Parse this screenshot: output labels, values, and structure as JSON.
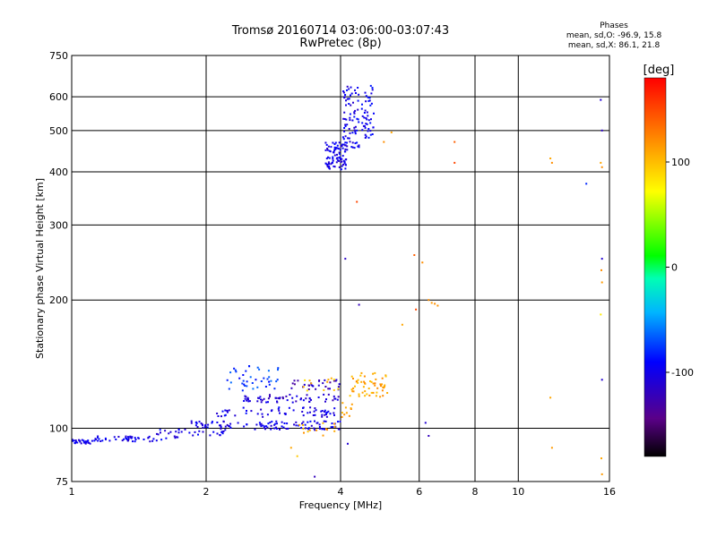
{
  "chart_data": {
    "type": "scatter",
    "title": "Tromsø 20160714 03:06:00-03:07:43",
    "subtitle": "RwPretec (8p)",
    "xlabel": "Frequency [MHz]",
    "ylabel": "Stationary phase Virtual Height [km]",
    "x_scale": "log",
    "y_scale": "log",
    "xlim": [
      1,
      16
    ],
    "ylim": [
      75,
      750
    ],
    "x_ticks": [
      1,
      2,
      4,
      6,
      8,
      10,
      16
    ],
    "y_ticks": [
      75,
      100,
      200,
      300,
      400,
      500,
      600,
      750
    ],
    "grid": true,
    "colorbar": {
      "label": "[deg]",
      "ticks": [
        100,
        0,
        -100
      ],
      "range": [
        -180,
        180
      ],
      "colormap": "rainbow"
    },
    "phase_stats": {
      "heading": "Phases",
      "line_o": "mean, sd,O: -96.9, 15.8",
      "line_x": "mean, sd,X:  86.1, 21.8"
    },
    "clusters": [
      {
        "f": [
          1.0,
          1.1
        ],
        "h": [
          92,
          94
        ],
        "phase": -100,
        "n": 28
      },
      {
        "f": [
          1.1,
          1.55
        ],
        "h": [
          93,
          96
        ],
        "phase": -100,
        "n": 45
      },
      {
        "f": [
          1.55,
          1.85
        ],
        "h": [
          94,
          100
        ],
        "phase": -100,
        "n": 20
      },
      {
        "f": [
          1.85,
          2.2
        ],
        "h": [
          96,
          104
        ],
        "phase": -100,
        "n": 40
      },
      {
        "f": [
          2.2,
          4.0
        ],
        "h": [
          99,
          104
        ],
        "phase": -100,
        "n": 80
      },
      {
        "f": [
          2.1,
          3.9
        ],
        "h": [
          106,
          112
        ],
        "phase": -100,
        "n": 60
      },
      {
        "f": [
          2.4,
          4.0
        ],
        "h": [
          115,
          120
        ],
        "phase": -110,
        "n": 60
      },
      {
        "f": [
          2.2,
          2.9
        ],
        "h": [
          122,
          140
        ],
        "phase": -75,
        "n": 40
      },
      {
        "f": [
          3.0,
          4.0
        ],
        "h": [
          123,
          130
        ],
        "phase": -120,
        "n": 30
      },
      {
        "f": [
          3.2,
          3.9
        ],
        "h": [
          96,
          104
        ],
        "phase": 110,
        "n": 14
      },
      {
        "f": [
          3.3,
          4.0
        ],
        "h": [
          122,
          132
        ],
        "phase": 100,
        "n": 12
      },
      {
        "f": [
          4.2,
          5.1
        ],
        "h": [
          118,
          135
        ],
        "phase": 110,
        "n": 55
      },
      {
        "f": [
          4.0,
          4.3
        ],
        "h": [
          104,
          118
        ],
        "phase": 115,
        "n": 10
      },
      {
        "f": [
          3.7,
          4.15
        ],
        "h": [
          405,
          470
        ],
        "phase": -100,
        "n": 90
      },
      {
        "f": [
          4.05,
          4.4
        ],
        "h": [
          450,
          640
        ],
        "phase": -100,
        "n": 70
      },
      {
        "f": [
          4.45,
          4.75
        ],
        "h": [
          480,
          640
        ],
        "phase": -95,
        "n": 45
      }
    ],
    "points": [
      {
        "f": 4.1,
        "h": 250,
        "phase": -115
      },
      {
        "f": 4.35,
        "h": 340,
        "phase": 150
      },
      {
        "f": 4.4,
        "h": 195,
        "phase": -120
      },
      {
        "f": 4.15,
        "h": 92,
        "phase": -110
      },
      {
        "f": 5.0,
        "h": 470,
        "phase": 120
      },
      {
        "f": 5.2,
        "h": 495,
        "phase": 110
      },
      {
        "f": 5.5,
        "h": 175,
        "phase": 110
      },
      {
        "f": 5.9,
        "h": 190,
        "phase": 150
      },
      {
        "f": 5.85,
        "h": 255,
        "phase": 140
      },
      {
        "f": 6.1,
        "h": 245,
        "phase": 120
      },
      {
        "f": 6.3,
        "h": 200,
        "phase": 120
      },
      {
        "f": 6.4,
        "h": 197,
        "phase": 115
      },
      {
        "f": 6.5,
        "h": 196,
        "phase": 120
      },
      {
        "f": 6.6,
        "h": 194,
        "phase": 118
      },
      {
        "f": 6.2,
        "h": 103,
        "phase": -110
      },
      {
        "f": 6.3,
        "h": 96,
        "phase": -120
      },
      {
        "f": 7.2,
        "h": 470,
        "phase": 140
      },
      {
        "f": 7.2,
        "h": 420,
        "phase": 150
      },
      {
        "f": 3.1,
        "h": 90,
        "phase": 110
      },
      {
        "f": 3.2,
        "h": 86,
        "phase": 95
      },
      {
        "f": 3.5,
        "h": 77,
        "phase": -120
      },
      {
        "f": 11.8,
        "h": 430,
        "phase": 110
      },
      {
        "f": 11.9,
        "h": 420,
        "phase": 120
      },
      {
        "f": 11.8,
        "h": 118,
        "phase": 110
      },
      {
        "f": 11.9,
        "h": 90,
        "phase": 115
      },
      {
        "f": 14.2,
        "h": 375,
        "phase": -80
      },
      {
        "f": 15.3,
        "h": 590,
        "phase": -110
      },
      {
        "f": 15.4,
        "h": 500,
        "phase": -115
      },
      {
        "f": 15.3,
        "h": 420,
        "phase": 110
      },
      {
        "f": 15.4,
        "h": 410,
        "phase": 120
      },
      {
        "f": 15.4,
        "h": 250,
        "phase": -110
      },
      {
        "f": 15.35,
        "h": 235,
        "phase": 120
      },
      {
        "f": 15.4,
        "h": 220,
        "phase": 115
      },
      {
        "f": 15.3,
        "h": 185,
        "phase": 80
      },
      {
        "f": 15.4,
        "h": 130,
        "phase": -110
      },
      {
        "f": 15.35,
        "h": 85,
        "phase": 110
      },
      {
        "f": 15.4,
        "h": 78,
        "phase": 115
      }
    ]
  }
}
